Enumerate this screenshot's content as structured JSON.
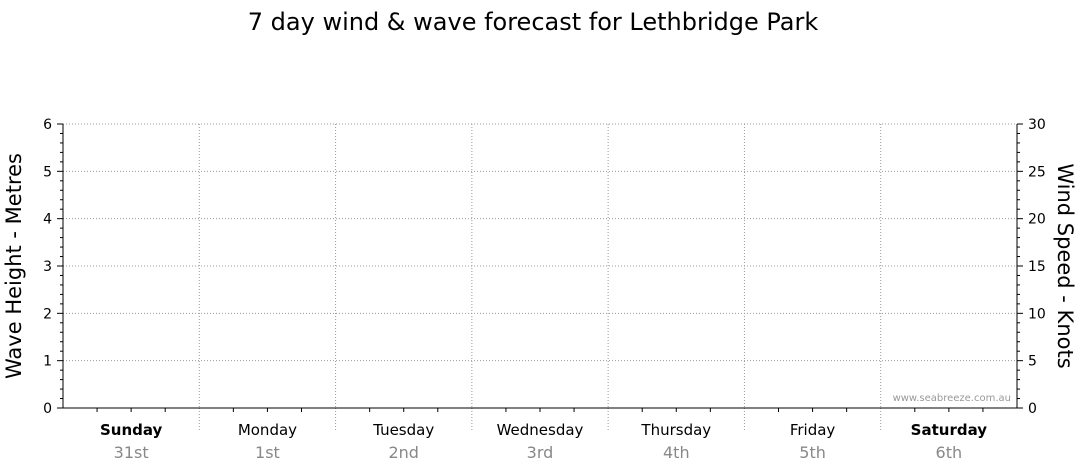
{
  "chart_data": {
    "type": "line",
    "title": "7 day wind & wave forecast for Lethbridge Park",
    "ylabel_left": "Wave Height - Metres",
    "ylabel_right": "Wind Speed - Knots",
    "ylim_left": [
      0,
      6
    ],
    "ylim_right": [
      0,
      30
    ],
    "yticks_left": [
      "0",
      "1",
      "2",
      "3",
      "4",
      "5",
      "6"
    ],
    "yticks_right": [
      "0",
      "5",
      "10",
      "15",
      "20",
      "25",
      "30"
    ],
    "days": [
      {
        "name": "Sunday",
        "date": "31st",
        "bold": true
      },
      {
        "name": "Monday",
        "date": "1st",
        "bold": false
      },
      {
        "name": "Tuesday",
        "date": "2nd",
        "bold": false
      },
      {
        "name": "Wednesday",
        "date": "3rd",
        "bold": false
      },
      {
        "name": "Thursday",
        "date": "4th",
        "bold": false
      },
      {
        "name": "Friday",
        "date": "5th",
        "bold": false
      },
      {
        "name": "Saturday",
        "date": "6th",
        "bold": true
      }
    ],
    "series": [],
    "grid": true,
    "watermark": "www.seabreeze.com.au"
  }
}
